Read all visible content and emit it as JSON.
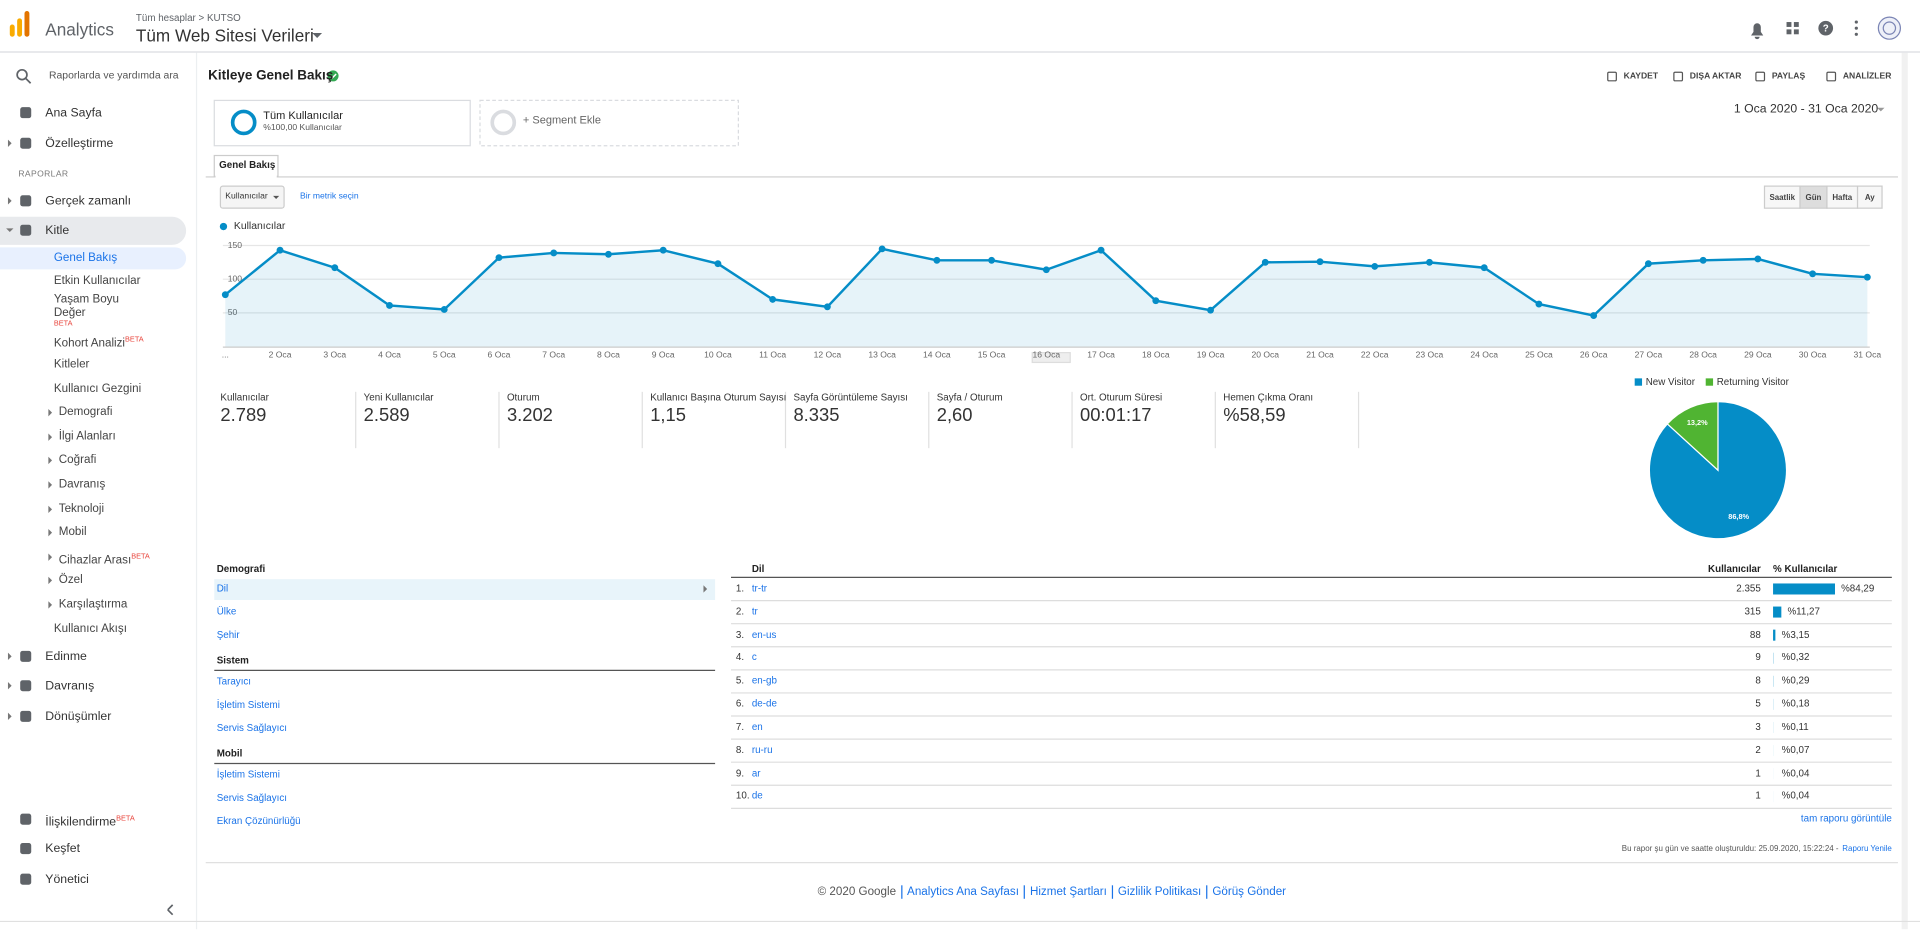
{
  "header": {
    "product": "Analytics",
    "breadcrumb": "Tüm hesaplar > KUTSO",
    "property": "Tüm Web Sitesi Verileri"
  },
  "sidebar": {
    "search_placeholder": "Raporlarda ve yardımda ara",
    "beta_label": "BETA",
    "section": "RAPORLAR",
    "top_items": [
      "Ana Sayfa",
      "Özelleştirme"
    ],
    "report_items": [
      "Gerçek zamanlı",
      "Kitle"
    ],
    "audience_items": [
      {
        "label": "Genel Bakış"
      },
      {
        "label": "Etkin Kullanıcılar"
      },
      {
        "label": "Yaşam Boyu Değer",
        "beta": true
      },
      {
        "label": "Kohort Analizi",
        "beta": true
      },
      {
        "label": "Kitleler"
      },
      {
        "label": "Kullanıcı Gezgini"
      },
      {
        "label": "Demografi",
        "expandable": true
      },
      {
        "label": "İlgi Alanları",
        "expandable": true
      },
      {
        "label": "Coğrafi",
        "expandable": true
      },
      {
        "label": "Davranış",
        "expandable": true
      },
      {
        "label": "Teknoloji",
        "expandable": true
      },
      {
        "label": "Mobil",
        "expandable": true
      },
      {
        "label": "Cihazlar Arası",
        "expandable": true,
        "beta": true
      },
      {
        "label": "Özel",
        "expandable": true
      },
      {
        "label": "Karşılaştırma",
        "expandable": true
      },
      {
        "label": "Kullanıcı Akışı"
      }
    ],
    "more_items": [
      "Edinme",
      "Davranış",
      "Dönüşümler"
    ],
    "bottom_items": [
      {
        "label": "İlişkilendirme",
        "beta": true
      },
      {
        "label": "Keşfet"
      },
      {
        "label": "Yönetici"
      }
    ]
  },
  "report": {
    "title": "Kitleye Genel Bakış",
    "actions": [
      "KAYDET",
      "DIŞA AKTAR",
      "PAYLAŞ",
      "ANALİZLER"
    ],
    "segment": {
      "name": "Tüm Kullanıcılar",
      "share": "%100,00 Kullanıcılar"
    },
    "add_segment": "+ Segment Ekle",
    "date_range": "1 Oca 2020 - 31 Oca 2020",
    "tab": "Genel Bakış",
    "metric_select": "Kullanıcılar",
    "metric_compare": "Bir metrik seçin",
    "intervals": [
      "Saatlik",
      "Gün",
      "Hafta",
      "Ay"
    ],
    "active_interval": 1
  },
  "chart_data": [
    {
      "type": "line",
      "area": true,
      "grid": true,
      "categories": [
        "...",
        "2 Oca",
        "3 Oca",
        "4 Oca",
        "5 Oca",
        "6 Oca",
        "7 Oca",
        "8 Oca",
        "9 Oca",
        "10 Oca",
        "11 Oca",
        "12 Oca",
        "13 Oca",
        "14 Oca",
        "15 Oca",
        "16 Oca",
        "17 Oca",
        "18 Oca",
        "19 Oca",
        "20 Oca",
        "21 Oca",
        "22 Oca",
        "23 Oca",
        "24 Oca",
        "25 Oca",
        "26 Oca",
        "27 Oca",
        "28 Oca",
        "29 Oca",
        "30 Oca",
        "31 Oca"
      ],
      "series": [
        {
          "name": "Kullanıcılar",
          "color": "#058dc7",
          "values": [
            77,
            143,
            117,
            61,
            55,
            132,
            139,
            137,
            143,
            123,
            70,
            59,
            145,
            128,
            128,
            114,
            143,
            68,
            54,
            125,
            126,
            119,
            125,
            117,
            63,
            46,
            123,
            128,
            130,
            108,
            103
          ]
        }
      ],
      "ylim": [
        0,
        160
      ],
      "yticks": [
        50,
        100,
        150
      ]
    },
    {
      "type": "pie",
      "legend": "top",
      "categories": [
        "New Visitor",
        "Returning Visitor"
      ],
      "values": [
        86.8,
        13.2
      ],
      "value_labels": [
        "86,8%",
        "13,2%"
      ],
      "colors": [
        "#058dc7",
        "#50b432"
      ]
    }
  ],
  "metrics": [
    {
      "label": "Kullanıcılar",
      "value": "2.789"
    },
    {
      "label": "Yeni Kullanıcılar",
      "value": "2.589"
    },
    {
      "label": "Oturum",
      "value": "3.202"
    },
    {
      "label": "Kullanıcı Başına Oturum Sayısı",
      "value": "1,15"
    },
    {
      "label": "Sayfa Görüntüleme Sayısı",
      "value": "8.335"
    },
    {
      "label": "Sayfa / Oturum",
      "value": "2,60"
    },
    {
      "label": "Ort. Oturum Süresi",
      "value": "00:01:17"
    },
    {
      "label": "Hemen Çıkma Oranı",
      "value": "%58,59"
    }
  ],
  "dimension_sections": [
    {
      "title": "Demografi",
      "items": [
        "Dil",
        "Ülke",
        "Şehir"
      ]
    },
    {
      "title": "Sistem",
      "items": [
        "Tarayıcı",
        "İşletim Sistemi",
        "Servis Sağlayıcı"
      ]
    },
    {
      "title": "Mobil",
      "items": [
        "İşletim Sistemi",
        "Servis Sağlayıcı",
        "Ekran Çözünürlüğü"
      ]
    }
  ],
  "language_table": {
    "columns": [
      "Dil",
      "Kullanıcılar",
      "% Kullanıcılar"
    ],
    "rows": [
      {
        "rank": "1.",
        "language": "tr-tr",
        "users": "2.355",
        "share": 84.29,
        "share_label": "%84,29"
      },
      {
        "rank": "2.",
        "language": "tr",
        "users": "315",
        "share": 11.27,
        "share_label": "%11,27"
      },
      {
        "rank": "3.",
        "language": "en-us",
        "users": "88",
        "share": 3.15,
        "share_label": "%3,15"
      },
      {
        "rank": "4.",
        "language": "c",
        "users": "9",
        "share": 0.32,
        "share_label": "%0,32"
      },
      {
        "rank": "5.",
        "language": "en-gb",
        "users": "8",
        "share": 0.29,
        "share_label": "%0,29"
      },
      {
        "rank": "6.",
        "language": "de-de",
        "users": "5",
        "share": 0.18,
        "share_label": "%0,18"
      },
      {
        "rank": "7.",
        "language": "en",
        "users": "3",
        "share": 0.11,
        "share_label": "%0,11"
      },
      {
        "rank": "8.",
        "language": "ru-ru",
        "users": "2",
        "share": 0.07,
        "share_label": "%0,07"
      },
      {
        "rank": "9.",
        "language": "ar",
        "users": "1",
        "share": 0.04,
        "share_label": "%0,04"
      },
      {
        "rank": "10.",
        "language": "de",
        "users": "1",
        "share": 0.04,
        "share_label": "%0,04"
      }
    ],
    "full_report": "tam raporu görüntüle"
  },
  "report_note": "Bu rapor şu gün ve saatte oluşturuldu: 25.09.2020, 15:22:24 -",
  "refresh": "Raporu Yenile",
  "footer": {
    "copyright": "© 2020 Google",
    "links": [
      "Analytics Ana Sayfası",
      "Hizmet Şartları",
      "Gizlilik Politikası",
      "Görüş Gönder"
    ]
  }
}
